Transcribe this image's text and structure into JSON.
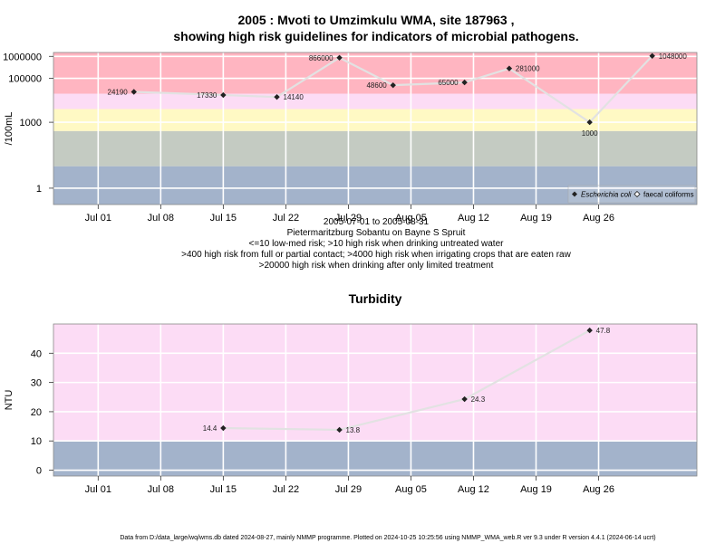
{
  "chart_data": [
    {
      "type": "line",
      "title_lines": [
        "2005 : Mvoti to Umzimkulu WMA, site 187963 ,",
        "showing high risk guidelines for indicators of microbial pathogens."
      ],
      "ylabel": "/100mL",
      "y_scale": "log",
      "ylim": [
        0.18,
        1500000
      ],
      "y_ticks": [
        {
          "value": 1,
          "label": "1"
        },
        {
          "value": 1000,
          "label": "1000"
        },
        {
          "value": 100000,
          "label": "100000"
        },
        {
          "value": 1000000,
          "label": "1000000"
        }
      ],
      "x_range": [
        "2005-06-26",
        "2005-09-06"
      ],
      "x_ticks": [
        {
          "date": "2005-07-01",
          "label": "Jul 01"
        },
        {
          "date": "2005-07-08",
          "label": "Jul 08"
        },
        {
          "date": "2005-07-15",
          "label": "Jul 15"
        },
        {
          "date": "2005-07-22",
          "label": "Jul 22"
        },
        {
          "date": "2005-07-29",
          "label": "Jul 29"
        },
        {
          "date": "2005-08-05",
          "label": "Aug 05"
        },
        {
          "date": "2005-08-12",
          "label": "Aug 12"
        },
        {
          "date": "2005-08-19",
          "label": "Aug 19"
        },
        {
          "date": "2005-08-26",
          "label": "Aug 26"
        }
      ],
      "risk_bands": [
        {
          "from": 0.18,
          "to": 10,
          "color": "#a3b3cb"
        },
        {
          "from": 10,
          "to": 400,
          "color": "#c4cbc2"
        },
        {
          "from": 400,
          "to": 4000,
          "color": "#fff9c4"
        },
        {
          "from": 4000,
          "to": 20000,
          "color": "#fcdcf5"
        },
        {
          "from": 20000,
          "to": 1500000,
          "color": "#ffb5c1"
        }
      ],
      "series": [
        {
          "name": "Escherichia coli",
          "points": [
            {
              "date": "2005-07-05",
              "value": 24190,
              "label": "24190",
              "label_side": "left"
            },
            {
              "date": "2005-07-15",
              "value": 17330,
              "label": "17330",
              "label_side": "left"
            },
            {
              "date": "2005-07-21",
              "value": 14140,
              "label": "14140",
              "label_side": "right"
            },
            {
              "date": "2005-07-28",
              "value": 866000,
              "label": "866000",
              "label_side": "left"
            },
            {
              "date": "2005-08-03",
              "value": 48600,
              "label": "48600",
              "label_side": "left"
            },
            {
              "date": "2005-08-11",
              "value": 65000,
              "label": "65000",
              "label_side": "left"
            },
            {
              "date": "2005-08-16",
              "value": 281000,
              "label": "281000",
              "label_side": "right"
            },
            {
              "date": "2005-08-25",
              "value": 1000,
              "label": "1000",
              "label_side": "below"
            },
            {
              "date": "2005-09-01",
              "value": 1048000,
              "label": "1048000",
              "label_side": "right"
            }
          ]
        }
      ],
      "legend": {
        "position": "bottom-right",
        "entries": [
          "Escherichia coli",
          "faecal coliforms"
        ]
      },
      "caption_lines": [
        "2005-07-01 to 2005-08-31",
        "Pietermaritzburg Sobantu on Bayne S Spruit",
        "<=10 low-med risk; >10 high risk when drinking untreated water",
        ">400 high risk from full or partial contact; >4000 high risk when irrigating crops that are eaten raw",
        ">20000 high risk when drinking after only limited treatment"
      ]
    },
    {
      "type": "line",
      "title": "Turbidity",
      "ylabel": "NTU",
      "ylim": [
        -2,
        50
      ],
      "y_ticks": [
        {
          "value": 0,
          "label": "0"
        },
        {
          "value": 10,
          "label": "10"
        },
        {
          "value": 20,
          "label": "20"
        },
        {
          "value": 30,
          "label": "30"
        },
        {
          "value": 40,
          "label": "40"
        }
      ],
      "x_range": [
        "2005-06-26",
        "2005-09-06"
      ],
      "x_ticks": [
        {
          "date": "2005-07-01",
          "label": "Jul 01"
        },
        {
          "date": "2005-07-08",
          "label": "Jul 08"
        },
        {
          "date": "2005-07-15",
          "label": "Jul 15"
        },
        {
          "date": "2005-07-22",
          "label": "Jul 22"
        },
        {
          "date": "2005-07-29",
          "label": "Jul 29"
        },
        {
          "date": "2005-08-05",
          "label": "Aug 05"
        },
        {
          "date": "2005-08-12",
          "label": "Aug 12"
        },
        {
          "date": "2005-08-19",
          "label": "Aug 19"
        },
        {
          "date": "2005-08-26",
          "label": "Aug 26"
        }
      ],
      "risk_bands": [
        {
          "from": -2,
          "to": 10,
          "color": "#a3b3cb"
        },
        {
          "from": 10,
          "to": 50,
          "color": "#fcdcf5"
        }
      ],
      "series": [
        {
          "name": "Turbidity",
          "points": [
            {
              "date": "2005-07-15",
              "value": 14.4,
              "label": "14.4",
              "label_side": "left"
            },
            {
              "date": "2005-07-28",
              "value": 13.8,
              "label": "13.8",
              "label_side": "right"
            },
            {
              "date": "2005-08-11",
              "value": 24.3,
              "label": "24.3",
              "label_side": "right"
            },
            {
              "date": "2005-08-25",
              "value": 47.8,
              "label": "47.8",
              "label_side": "right"
            }
          ]
        }
      ]
    }
  ],
  "footer": "Data from D:/data_large/wq/wms.db dated 2024-08-27, mainly NMMP programme. Plotted on 2024-10-25 10:25:56 using NMMP_WMA_web.R ver 9.3 under R version 4.4.1 (2024-06-14 ucrt)"
}
